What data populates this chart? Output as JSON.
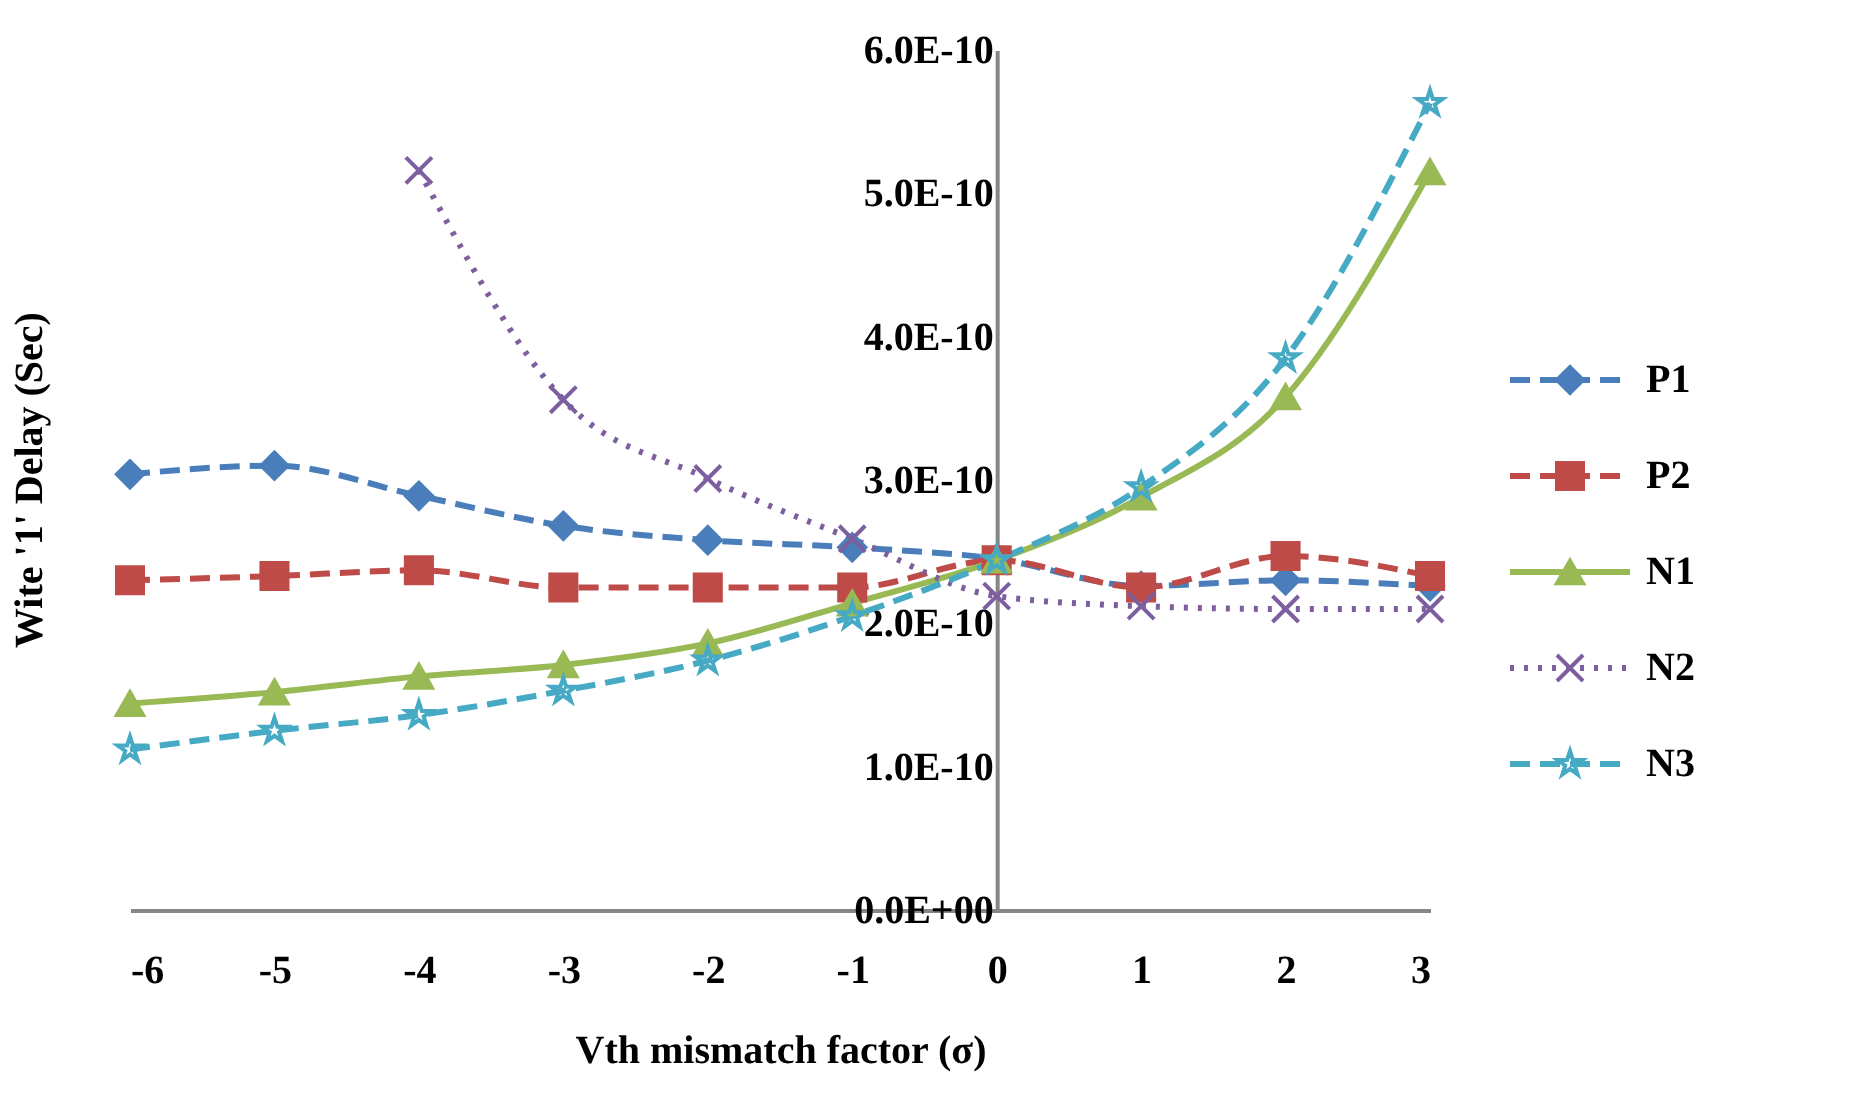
{
  "chart_data": {
    "type": "line",
    "xlabel": "Vth mismatch factor (σ)",
    "ylabel": "Wite '1' Delay (Sec)",
    "x": [
      -6,
      -5,
      -4,
      -3,
      -2,
      -1,
      0,
      1,
      2,
      3
    ],
    "xlim": [
      -6,
      3
    ],
    "xticks": [
      -6,
      -5,
      -4,
      -3,
      -2,
      -1,
      0,
      1,
      2,
      3
    ],
    "ylim": [
      0,
      6e-10
    ],
    "yticks": [
      {
        "value": 0,
        "label": "0.0E+00"
      },
      {
        "value": 1e-10,
        "label": "1.0E-10"
      },
      {
        "value": 2e-10,
        "label": "2.0E-10"
      },
      {
        "value": 3e-10,
        "label": "3.0E-10"
      },
      {
        "value": 4e-10,
        "label": "4.0E-10"
      },
      {
        "value": 5e-10,
        "label": "5.0E-10"
      },
      {
        "value": 6e-10,
        "label": "6.0E-10"
      }
    ],
    "grid": false,
    "legend": "right",
    "series": [
      {
        "name": "P1",
        "color": "#4a7ebb",
        "marker": "diamond",
        "line_style": "dashed",
        "values": [
          3.04e-10,
          3.1e-10,
          2.89e-10,
          2.68e-10,
          2.58e-10,
          2.53e-10,
          2.45e-10,
          2.26e-10,
          2.3e-10,
          2.26e-10
        ]
      },
      {
        "name": "P2",
        "color": "#be4b48",
        "marker": "square",
        "line_style": "dashed",
        "values": [
          2.3e-10,
          2.33e-10,
          2.37e-10,
          2.25e-10,
          2.25e-10,
          2.25e-10,
          2.44e-10,
          2.25e-10,
          2.47e-10,
          2.33e-10
        ]
      },
      {
        "name": "N1",
        "color": "#98b954",
        "marker": "triangle",
        "line_style": "solid",
        "values": [
          1.44e-10,
          1.52e-10,
          1.63e-10,
          1.71e-10,
          1.86e-10,
          2.14e-10,
          2.44e-10,
          2.88e-10,
          3.58e-10,
          5.15e-10
        ]
      },
      {
        "name": "N2",
        "color": "#7d5fa0",
        "marker": "cross",
        "line_style": "dotted",
        "values": [
          null,
          null,
          5.16e-10,
          3.56e-10,
          3.01e-10,
          2.59e-10,
          2.19e-10,
          2.12e-10,
          2.1e-10,
          2.1e-10
        ]
      },
      {
        "name": "N3",
        "color": "#46aac5",
        "marker": "star",
        "line_style": "dashed",
        "values": [
          1.12e-10,
          1.25e-10,
          1.36e-10,
          1.53e-10,
          1.74e-10,
          2.05e-10,
          2.44e-10,
          2.95e-10,
          3.85e-10,
          5.63e-10
        ]
      }
    ]
  }
}
